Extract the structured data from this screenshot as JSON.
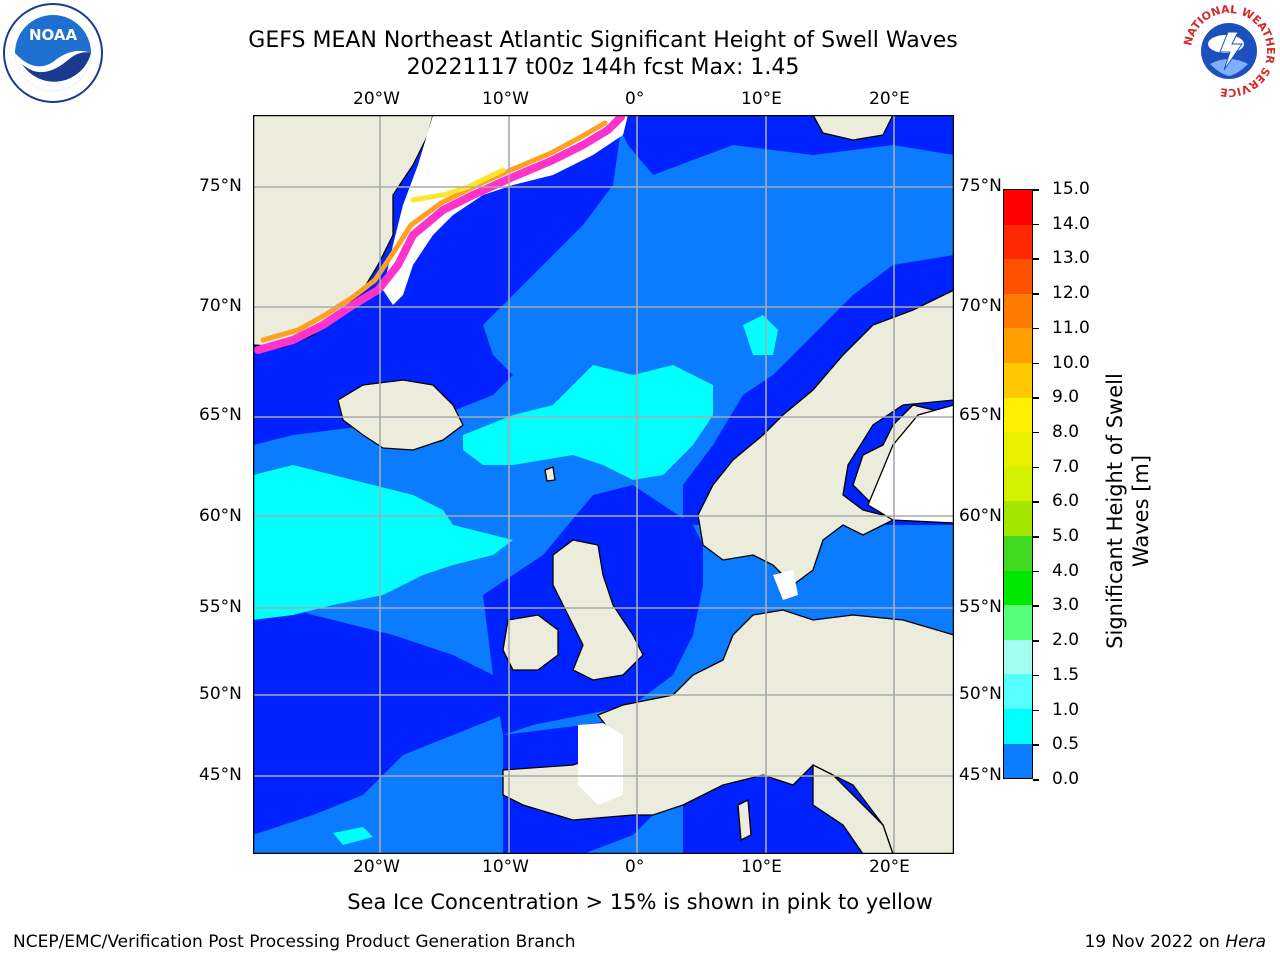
{
  "title": {
    "line1": "GEFS MEAN Northeast Atlantic Significant Height of Swell Waves",
    "line2": "20221117 t00z 144h fcst   Max: 1.45"
  },
  "map": {
    "lon_labels_top": [
      "20°W",
      "10°W",
      "0°",
      "10°E",
      "20°E"
    ],
    "lon_labels_bottom": [
      "20°W",
      "10°W",
      "0°",
      "10°E",
      "20°E"
    ],
    "lat_labels_left": [
      "75°N",
      "70°N",
      "65°N",
      "60°N",
      "55°N",
      "50°N",
      "45°N"
    ],
    "lat_labels_right": [
      "75°N",
      "70°N",
      "65°N",
      "60°N",
      "55°N",
      "50°N",
      "45°N"
    ],
    "colors": {
      "land": "#ECECDC",
      "level_0_0.5": "#0022FF",
      "level_0.5_1.0": "#0B7BFF",
      "level_1.0_1.5": "#00FFFF",
      "ice_pink": "#FF33CC",
      "ice_yellow": "#FFE62E",
      "grid": "#AAAAAA"
    }
  },
  "colorbar": {
    "label_line1": "Significant Height of Swell",
    "label_line2": "Waves [m]",
    "ticks": [
      "15.0",
      "14.0",
      "13.0",
      "12.0",
      "11.0",
      "10.0",
      "9.0",
      "8.0",
      "7.0",
      "6.0",
      "5.0",
      "4.0",
      "3.0",
      "2.0",
      "1.5",
      "1.0",
      "0.5",
      "0.0"
    ],
    "segment_colors": [
      "#FF0000",
      "#FF2800",
      "#FF5000",
      "#FF7A00",
      "#FFA000",
      "#FFC800",
      "#FFF000",
      "#E8F000",
      "#D2F000",
      "#A4E600",
      "#40D820",
      "#00E800",
      "#55FF77",
      "#A0FFEE",
      "#55FFFF",
      "#00FFFF",
      "#0B7BFF",
      "#0022FF"
    ]
  },
  "footnote": "Sea Ice Concentration > 15% is shown in pink to yellow",
  "credit": "NCEP/EMC/Verification Post Processing Product Generation Branch",
  "stamp": {
    "date": "19 Nov 2022 on ",
    "machine": "Hera"
  },
  "logos": {
    "left": "NOAA",
    "right": "NATIONAL WEATHER SERVICE"
  }
}
